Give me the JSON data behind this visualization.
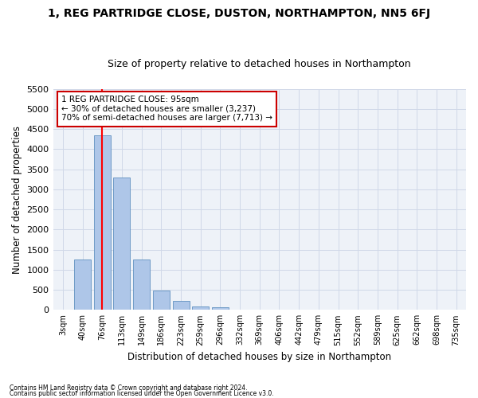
{
  "title": "1, REG PARTRIDGE CLOSE, DUSTON, NORTHAMPTON, NN5 6FJ",
  "subtitle": "Size of property relative to detached houses in Northampton",
  "xlabel": "Distribution of detached houses by size in Northampton",
  "ylabel": "Number of detached properties",
  "footer_line1": "Contains HM Land Registry data © Crown copyright and database right 2024.",
  "footer_line2": "Contains public sector information licensed under the Open Government Licence v3.0.",
  "bar_labels": [
    "3sqm",
    "40sqm",
    "76sqm",
    "113sqm",
    "149sqm",
    "186sqm",
    "223sqm",
    "259sqm",
    "296sqm",
    "332sqm",
    "369sqm",
    "406sqm",
    "442sqm",
    "479sqm",
    "515sqm",
    "552sqm",
    "589sqm",
    "625sqm",
    "662sqm",
    "698sqm",
    "735sqm"
  ],
  "bar_values": [
    0,
    1260,
    4350,
    3300,
    1260,
    480,
    215,
    95,
    60,
    0,
    0,
    0,
    0,
    0,
    0,
    0,
    0,
    0,
    0,
    0,
    0
  ],
  "bar_color": "#aec6e8",
  "bar_edge_color": "#6090c0",
  "ylim": [
    0,
    5500
  ],
  "yticks": [
    0,
    500,
    1000,
    1500,
    2000,
    2500,
    3000,
    3500,
    4000,
    4500,
    5000,
    5500
  ],
  "property_label": "1 REG PARTRIDGE CLOSE: 95sqm",
  "pct_smaller": 30,
  "n_smaller": 3237,
  "pct_larger_semi": 70,
  "n_larger_semi": 7713,
  "vline_bin_index": 2,
  "annotation_box_color": "#cc0000",
  "grid_color": "#d0d8e8",
  "background_color": "#eef2f8"
}
